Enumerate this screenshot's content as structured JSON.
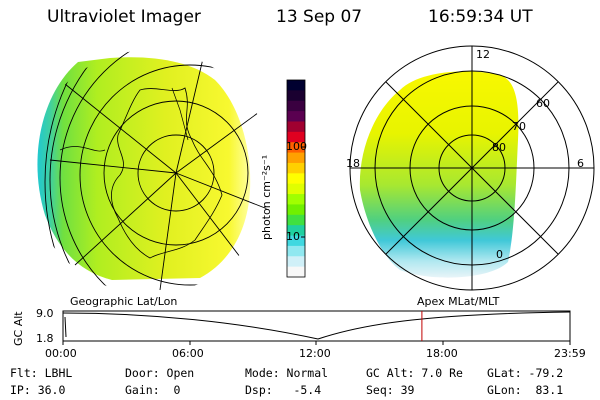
{
  "header": {
    "instrument": "Ultraviolet Imager",
    "date": "13 Sep 07",
    "time": "16:59:34 UT"
  },
  "colorbar": {
    "label": "photon cm⁻²s⁻¹",
    "ticks": [
      "100",
      "10"
    ],
    "colors": [
      "#000030",
      "#1a0030",
      "#3a0040",
      "#5a0050",
      "#a00030",
      "#e00020",
      "#ff6000",
      "#ffa000",
      "#ffd000",
      "#ffff00",
      "#e0ff00",
      "#a0ff00",
      "#70f000",
      "#40e040",
      "#20d0a0",
      "#40d8e0",
      "#90e8f0",
      "#d0f0f8",
      "#f8f8f8"
    ]
  },
  "polar": {
    "lat_labels": [
      "60",
      "70",
      "80"
    ],
    "mlt_labels": {
      "top": "12",
      "left": "18",
      "right": "6",
      "bottom": "0"
    }
  },
  "timeline": {
    "left_label": "Geographic Lat/Lon",
    "right_label": "Apex MLat/MLT",
    "y_axis_label": "GC Alt",
    "y_top": "9.0",
    "y_bottom": "1.8",
    "times": [
      "00:00",
      "06:00",
      "12:00",
      "18:00",
      "23:59"
    ],
    "marker_time_hours": 16.99
  },
  "info": {
    "flt": "Flt: LBHL",
    "door": "Door: Open",
    "mode": "Mode: Normal",
    "gc_alt": "GC Alt: 7.0 Re",
    "glat": "GLat: -79.2",
    "ip": "IP: 36.0",
    "gain": "Gain:  0",
    "dsp": "Dsp:   -5.4",
    "seq": "Seq: 39",
    "glon": "GLon:  83.1"
  }
}
